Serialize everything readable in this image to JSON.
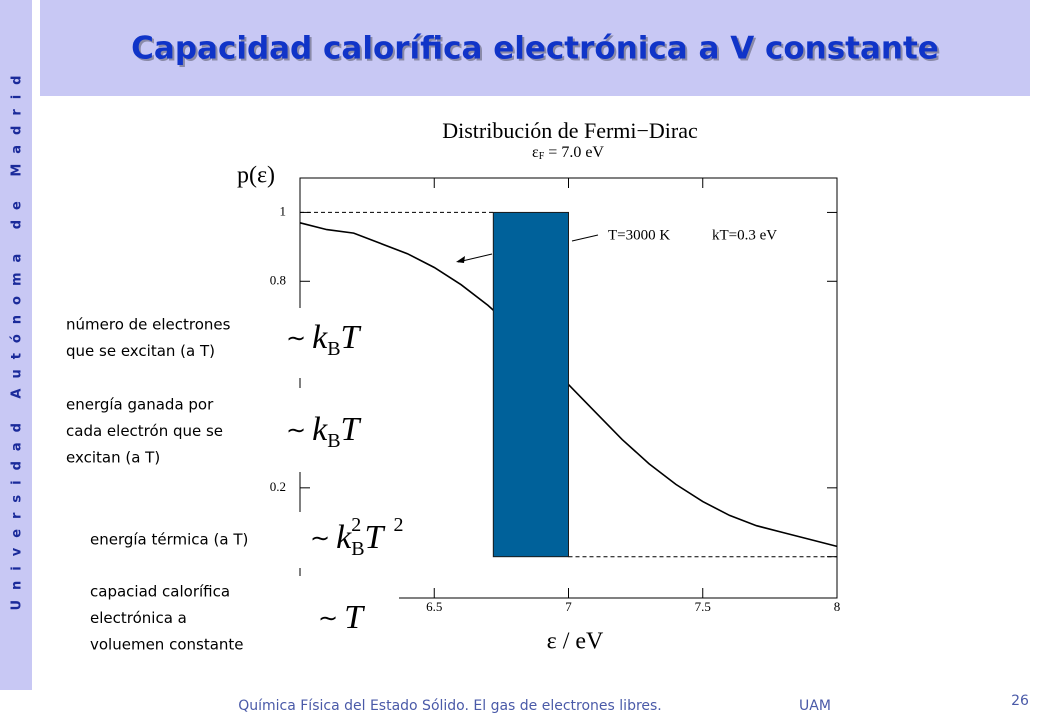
{
  "sidebar": "Universidad Autónoma de Madrid",
  "header": {
    "title": "Capacidad calorífica electrónica a V constante"
  },
  "chart_data": {
    "type": "line",
    "title": "Distribución de Fermi−Dirac",
    "subtitle": {
      "symbol": "ε",
      "subscript": "F",
      "text": "= 7.0 eV"
    },
    "y_label": "p(ε)",
    "x_label": "ε / eV",
    "x": [
      6.0,
      6.1,
      6.2,
      6.3,
      6.4,
      6.5,
      6.6,
      6.7,
      6.8,
      6.9,
      7.0,
      7.1,
      7.2,
      7.3,
      7.4,
      7.5,
      7.6,
      7.7,
      7.8,
      7.9,
      8.0
    ],
    "values": [
      0.97,
      0.95,
      0.94,
      0.91,
      0.88,
      0.84,
      0.79,
      0.73,
      0.66,
      0.58,
      0.5,
      0.42,
      0.34,
      0.27,
      0.21,
      0.16,
      0.12,
      0.09,
      0.07,
      0.05,
      0.03
    ],
    "color": "#000000",
    "xlim": [
      6,
      8
    ],
    "xticks": [
      6.5,
      7,
      7.5,
      8
    ],
    "ylim": [
      -0.12,
      1.1
    ],
    "yticks": [
      0,
      0.2,
      0.8,
      1
    ],
    "annotation": [
      "T=3000 K",
      "kT=0.3 eV"
    ],
    "highlight": {
      "x": [
        6.72,
        7.0
      ],
      "y": [
        0,
        1
      ],
      "color": "#00619a"
    }
  },
  "notes": [
    {
      "lines": [
        "número de electrones",
        "que se excitan (a T)"
      ],
      "formula": {
        "lead": "∼",
        "base": "k",
        "sub": "B",
        "var": "T"
      }
    },
    {
      "lines": [
        "energía ganada por",
        "cada electrón que se",
        "excitan (a T)"
      ],
      "formula": {
        "lead": "∼",
        "base": "k",
        "sub": "B",
        "var": "T"
      }
    },
    {
      "lines": [
        "energía térmica (a T)"
      ],
      "formula": {
        "lead": "∼",
        "base": "k",
        "sup": "2",
        "sub": "B",
        "var": "T",
        "var_sup": "2"
      }
    },
    {
      "lines": [
        "capaciad calorífica",
        "electrónica a",
        "voluemen constante"
      ],
      "formula": {
        "lead": "∼",
        "var": "T"
      }
    }
  ],
  "footer": {
    "text": "Química Física del Estado Sólido. El gas de electrones libres.",
    "org": "UAM",
    "page": 26
  }
}
